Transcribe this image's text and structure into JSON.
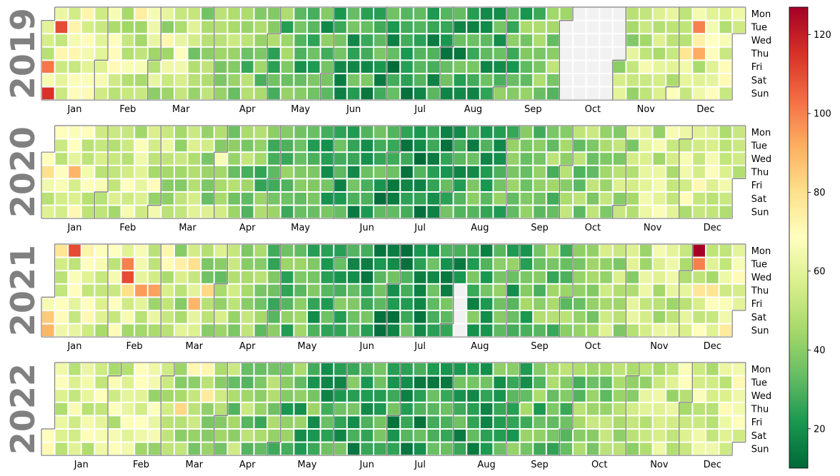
{
  "chart_data": {
    "type": "heatmap",
    "subtype": "calendar",
    "colormap": "RdYlGn_r",
    "colormap_stops": [
      "#006837",
      "#1a9850",
      "#66bd63",
      "#a6d96a",
      "#d9ef8b",
      "#ffffbf",
      "#fee08b",
      "#fdae61",
      "#f46d43",
      "#d73027",
      "#a50026"
    ],
    "missing_color": "#f2f2f2",
    "month_border_color": "#808080",
    "year_label_color": "#808080",
    "vmin": 10,
    "vmax": 127,
    "colorbar_ticks": [
      20,
      40,
      60,
      80,
      100,
      120
    ],
    "weekday_labels": [
      "Mon",
      "Tue",
      "Wed",
      "Thu",
      "Fri",
      "Sat",
      "Sun"
    ],
    "month_labels": [
      "Jan",
      "Feb",
      "Mar",
      "Apr",
      "May",
      "Jun",
      "Jul",
      "Aug",
      "Sep",
      "Oct",
      "Nov",
      "Dec"
    ],
    "years": [
      {
        "year": "2019",
        "missing_ranges": [
          [
            "2019-10-01",
            "2019-10-31"
          ]
        ],
        "high_days": {
          "2019-01-01": 60,
          "2019-01-04": 102,
          "2019-01-05": 66,
          "2019-01-06": 115,
          "2019-01-08": 110,
          "2019-01-17": 72,
          "2019-01-23": 70,
          "2019-02-18": 75,
          "2019-02-22": 66,
          "2019-03-06": 72,
          "2019-03-14": 68,
          "2019-03-15": 64,
          "2019-12-10": 100,
          "2019-12-12": 92,
          "2019-12-05": 78,
          "2019-12-11": 74
        }
      },
      {
        "year": "2020",
        "missing_ranges": [],
        "high_days": {
          "2020-01-02": 80,
          "2020-01-16": 90,
          "2020-01-09": 68,
          "2020-02-28": 70,
          "2020-04-01": 66,
          "2020-12-02": 66,
          "2020-12-03": 64
        }
      },
      {
        "year": "2021",
        "missing_ranges": [
          [
            "2021-08-05",
            "2021-08-08"
          ]
        ],
        "high_days": {
          "2021-01-02": 85,
          "2021-01-03": 90,
          "2021-01-04": 78,
          "2021-01-09": 70,
          "2021-01-11": 110,
          "2021-02-09": 100,
          "2021-02-10": 110,
          "2021-02-11": 80,
          "2021-02-18": 95,
          "2021-02-25": 94,
          "2021-03-01": 72,
          "2021-03-02": 70,
          "2021-03-09": 74,
          "2021-03-16": 80,
          "2021-03-25": 82,
          "2021-03-19": 90,
          "2021-12-06": 127,
          "2021-12-07": 100,
          "2021-12-09": 78,
          "2021-12-16": 78,
          "2021-12-26": 76
        }
      },
      {
        "year": "2022",
        "missing_ranges": [],
        "high_days": {
          "2022-01-03": 64,
          "2022-03-10": 82,
          "2022-03-14": 72,
          "2022-03-21": 72,
          "2022-03-23": 76,
          "2022-11-24": 62,
          "2022-11-29": 68
        }
      }
    ]
  }
}
